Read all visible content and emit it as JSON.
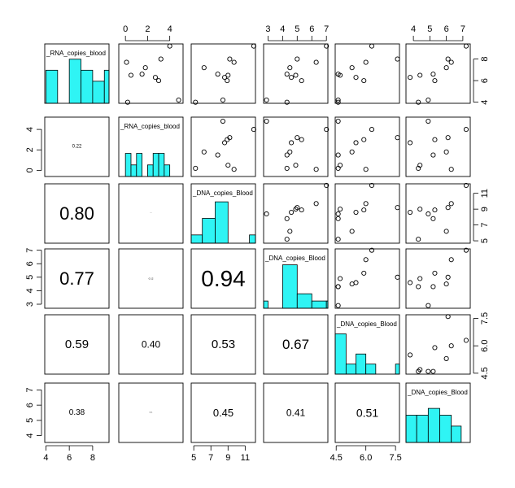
{
  "chart_data": {
    "type": "scatter",
    "variables": [
      "_RNA_copies_blood",
      "_RNA_copies_blood",
      "_DNA_copies_Blood",
      "_DNA_copies_Blood",
      "_DNA_copies_Blood",
      "_DNA_copies_Blood"
    ],
    "axis_ticks": [
      [
        "4",
        "6",
        "8"
      ],
      [
        "0",
        "2",
        "4"
      ],
      [
        "5",
        "7",
        "9",
        "11"
      ],
      [
        "3",
        "4",
        "5",
        "6",
        "7"
      ],
      [
        "4.5",
        "6.0",
        "7.5"
      ],
      [
        "4",
        "5",
        "6",
        "7"
      ]
    ],
    "ranges": [
      [
        3.9,
        9.4
      ],
      [
        -0.6,
        5.2
      ],
      [
        4.7,
        12.2
      ],
      [
        2.7,
        7.1
      ],
      [
        4.45,
        7.7
      ],
      [
        3.55,
        7.45
      ]
    ],
    "observations": [
      [
        9.2,
        4.0,
        12.0,
        7.0,
        6.3,
        7.2
      ],
      [
        7.7,
        0.1,
        9.7,
        6.3,
        6.0,
        6.3
      ],
      [
        4.0,
        0.2,
        5.2,
        4.3,
        4.6,
        4.3
      ],
      [
        6.3,
        2.7,
        8.6,
        4.6,
        5.5,
        3.8
      ],
      [
        8.0,
        3.2,
        9.2,
        5.0,
        7.6,
        6.1
      ],
      [
        6.6,
        1.5,
        7.8,
        4.3,
        4.6,
        5.2
      ],
      [
        4.2,
        4.8,
        8.4,
        2.9,
        4.6,
        4.9
      ],
      [
        6.0,
        3.0,
        8.9,
        5.3,
        5.9,
        5.3
      ],
      [
        7.2,
        1.8,
        6.2,
        4.5,
        5.3,
        6.0
      ],
      [
        6.5,
        0.5,
        9.0,
        4.9,
        4.7,
        4.4
      ]
    ],
    "correlations": [
      {
        "row": 2,
        "col": 1,
        "label": "0.22"
      },
      {
        "row": 3,
        "col": 1,
        "label": "0.80"
      },
      {
        "row": 3,
        "col": 2,
        "label": "0.03"
      },
      {
        "row": 4,
        "col": 1,
        "label": "0.77"
      },
      {
        "row": 4,
        "col": 2,
        "label": "0.12"
      },
      {
        "row": 4,
        "col": 3,
        "label": "0.94"
      },
      {
        "row": 5,
        "col": 1,
        "label": "0.59"
      },
      {
        "row": 5,
        "col": 2,
        "label": "0.40"
      },
      {
        "row": 5,
        "col": 3,
        "label": "0.53"
      },
      {
        "row": 5,
        "col": 4,
        "label": "0.67"
      },
      {
        "row": 6,
        "col": 1,
        "label": "0.38"
      },
      {
        "row": 6,
        "col": 2,
        "label": "0.11"
      },
      {
        "row": 6,
        "col": 3,
        "label": "0.45"
      },
      {
        "row": 6,
        "col": 4,
        "label": "0.41"
      },
      {
        "row": 6,
        "col": 5,
        "label": "0.51"
      }
    ],
    "histograms": [
      {
        "breaks": [
          4,
          5,
          6,
          7,
          8,
          9,
          9.4
        ],
        "counts": [
          3,
          0,
          4,
          3,
          2,
          3
        ],
        "max": 4.2
      },
      {
        "breaks": [
          0,
          0.5,
          1,
          1.5,
          2,
          2.5,
          3,
          3.5,
          4
        ],
        "counts": [
          2,
          1,
          2,
          0,
          1,
          2,
          2,
          1
        ],
        "max": 4.0
      },
      {
        "breaks": [
          4.7,
          6,
          7.5,
          9,
          11.5,
          12.2
        ],
        "counts": [
          1,
          3,
          5,
          0,
          1
        ],
        "max": 5.6
      },
      {
        "breaks": [
          2.7,
          3,
          4,
          5,
          6,
          7,
          7.1
        ],
        "counts": [
          1,
          0,
          6,
          2,
          1,
          1
        ],
        "max": 6.4
      },
      {
        "breaks": [
          4.45,
          5,
          5.5,
          6,
          6.5,
          7,
          7.5,
          7.7
        ],
        "counts": [
          4,
          1,
          2,
          1,
          0,
          0,
          1
        ],
        "max": 4.6
      },
      {
        "breaks": [
          3.55,
          4.2,
          4.9,
          5.6,
          6.3,
          6.9,
          7.45
        ],
        "counts": [
          2,
          2,
          2.5,
          2,
          1.2,
          0
        ],
        "max": 3.4
      }
    ],
    "colors": {
      "histogram_fill": "#2ff4f4",
      "frame": "#000000",
      "point": "#000000"
    },
    "grid": false,
    "legend": "none"
  }
}
